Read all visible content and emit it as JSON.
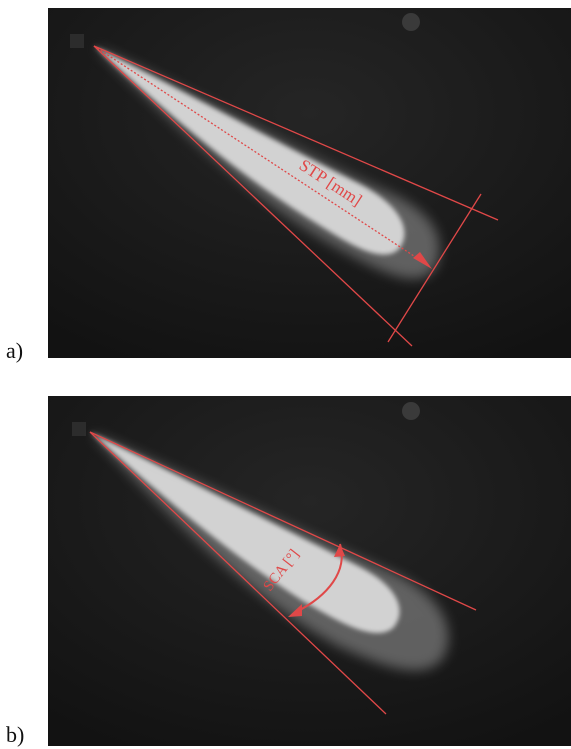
{
  "panels": [
    {
      "label": "a)",
      "annotation": "STP [mm]"
    },
    {
      "label": "b)",
      "annotation": "SCA [°]"
    }
  ],
  "colors": {
    "background": "#151515",
    "annotation_red": "#e04848",
    "spray": "#e6e6e6"
  }
}
